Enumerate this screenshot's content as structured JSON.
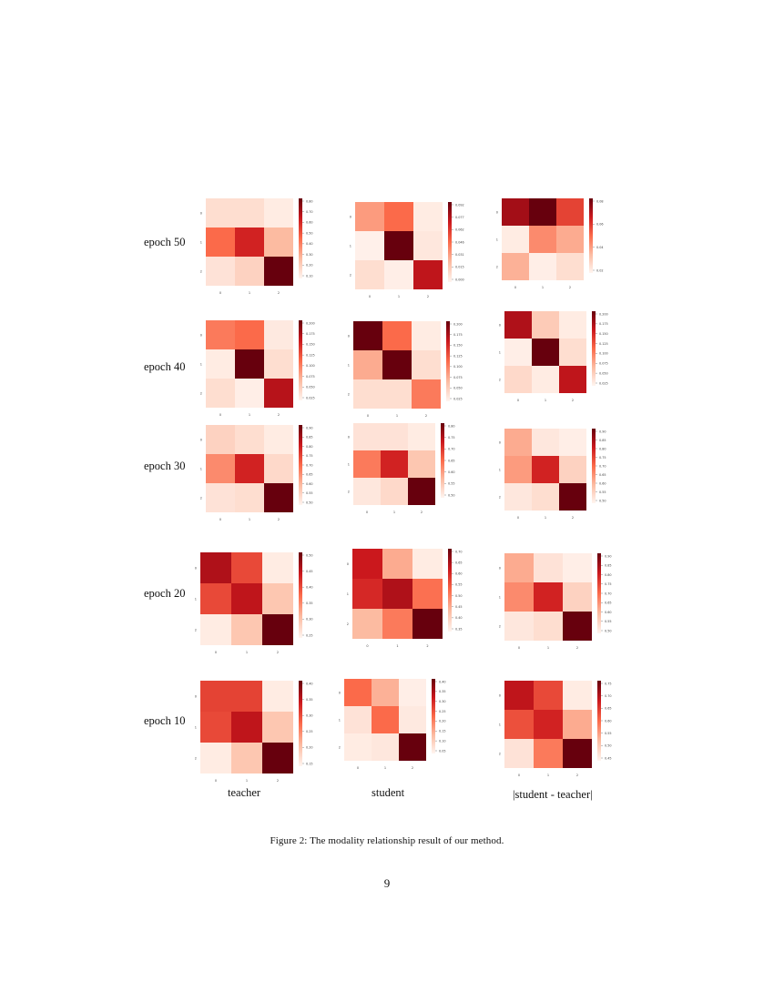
{
  "rows": [
    "epoch 50",
    "epoch 40",
    "epoch 30",
    "epoch 20",
    "epoch 10"
  ],
  "columns": [
    "teacher",
    "student",
    "|student - teacher|"
  ],
  "caption": "Figure 2: The modality relationship result of our method.",
  "page_number": "9",
  "colormap": [
    "#fff5f0",
    "#fcbba1",
    "#fb6a4a",
    "#cb181d",
    "#67000d"
  ],
  "chart_data": [
    {
      "type": "heatmap",
      "row": "epoch 50",
      "column": "teacher",
      "matrix": [
        [
          0.1,
          0.1,
          0.04
        ],
        [
          0.5,
          0.72,
          0.25
        ],
        [
          0.08,
          0.15,
          1.0
        ]
      ],
      "x_ticks": [
        "0",
        "1",
        "2"
      ],
      "y_ticks": [
        "0",
        "1",
        "2"
      ],
      "colorbar_ticks": [
        "0.80",
        "0.70",
        "0.60",
        "0.50",
        "0.40",
        "0.30",
        "0.20",
        "0.10"
      ]
    },
    {
      "type": "heatmap",
      "row": "epoch 50",
      "column": "student",
      "matrix": [
        [
          0.35,
          0.5,
          0.04
        ],
        [
          0.02,
          1.0,
          0.06
        ],
        [
          0.1,
          0.03,
          0.78
        ]
      ],
      "x_ticks": [
        "0",
        "1",
        "2"
      ],
      "y_ticks": [
        "0",
        "1",
        "2"
      ],
      "colorbar_ticks": [
        "0.092",
        "0.077",
        "0.062",
        "0.046",
        "0.031",
        "0.015",
        "0.000"
      ]
    },
    {
      "type": "heatmap",
      "row": "epoch 50",
      "column": "|student - teacher|",
      "matrix": [
        [
          0.85,
          1.0,
          0.62
        ],
        [
          0.04,
          0.4,
          0.3
        ],
        [
          0.28,
          0.03,
          0.1
        ]
      ],
      "x_ticks": [
        "0",
        "1",
        "2"
      ],
      "y_ticks": [
        "0",
        "1",
        "2"
      ],
      "colorbar_ticks": [
        "0.08",
        "0.06",
        "0.04",
        "0.02"
      ]
    },
    {
      "type": "heatmap",
      "row": "epoch 40",
      "column": "teacher",
      "matrix": [
        [
          0.45,
          0.5,
          0.05
        ],
        [
          0.04,
          1.0,
          0.1
        ],
        [
          0.1,
          0.03,
          0.8
        ]
      ],
      "x_ticks": [
        "0",
        "1",
        "2"
      ],
      "y_ticks": [
        "0",
        "1",
        "2"
      ],
      "colorbar_ticks": [
        "0.200",
        "0.175",
        "0.150",
        "0.125",
        "0.100",
        "0.075",
        "0.050",
        "0.025"
      ]
    },
    {
      "type": "heatmap",
      "row": "epoch 40",
      "column": "student",
      "matrix": [
        [
          1.0,
          0.5,
          0.04
        ],
        [
          0.3,
          1.0,
          0.1
        ],
        [
          0.1,
          0.1,
          0.45
        ]
      ],
      "x_ticks": [
        "0",
        "1",
        "2"
      ],
      "y_ticks": [
        "0",
        "1",
        "2"
      ],
      "colorbar_ticks": [
        "0.200",
        "0.175",
        "0.150",
        "0.125",
        "0.100",
        "0.075",
        "0.050",
        "0.025"
      ]
    },
    {
      "type": "heatmap",
      "row": "epoch 40",
      "column": "|student - teacher|",
      "matrix": [
        [
          0.82,
          0.18,
          0.04
        ],
        [
          0.03,
          1.0,
          0.1
        ],
        [
          0.12,
          0.04,
          0.78
        ]
      ],
      "x_ticks": [
        "0",
        "1",
        "2"
      ],
      "y_ticks": [
        "0",
        "1",
        "2"
      ],
      "colorbar_ticks": [
        "0.200",
        "0.175",
        "0.150",
        "0.125",
        "0.100",
        "0.075",
        "0.050",
        "0.025"
      ]
    },
    {
      "type": "heatmap",
      "row": "epoch 30",
      "column": "teacher",
      "matrix": [
        [
          0.15,
          0.1,
          0.04
        ],
        [
          0.4,
          0.72,
          0.12
        ],
        [
          0.08,
          0.1,
          1.0
        ]
      ],
      "x_ticks": [
        "0",
        "1",
        "2"
      ],
      "y_ticks": [
        "0",
        "1",
        "2"
      ],
      "colorbar_ticks": [
        "0.90",
        "0.85",
        "0.80",
        "0.75",
        "0.70",
        "0.65",
        "0.60",
        "0.55",
        "0.50"
      ]
    },
    {
      "type": "heatmap",
      "row": "epoch 30",
      "column": "student",
      "matrix": [
        [
          0.08,
          0.08,
          0.04
        ],
        [
          0.45,
          0.72,
          0.2
        ],
        [
          0.06,
          0.12,
          1.0
        ]
      ],
      "x_ticks": [
        "0",
        "1",
        "2"
      ],
      "y_ticks": [
        "0",
        "1",
        "2"
      ],
      "colorbar_ticks": [
        "0.80",
        "0.75",
        "0.70",
        "0.65",
        "0.60",
        "0.55",
        "0.50"
      ]
    },
    {
      "type": "heatmap",
      "row": "epoch 30",
      "column": "|student - teacher|",
      "matrix": [
        [
          0.3,
          0.06,
          0.03
        ],
        [
          0.35,
          0.72,
          0.15
        ],
        [
          0.06,
          0.1,
          1.0
        ]
      ],
      "x_ticks": [
        "0",
        "1",
        "2"
      ],
      "y_ticks": [
        "0",
        "1",
        "2"
      ],
      "colorbar_ticks": [
        "0.90",
        "0.85",
        "0.80",
        "0.75",
        "0.70",
        "0.65",
        "0.60",
        "0.55",
        "0.50"
      ]
    },
    {
      "type": "heatmap",
      "row": "epoch 20",
      "column": "teacher",
      "matrix": [
        [
          0.82,
          0.6,
          0.04
        ],
        [
          0.6,
          0.78,
          0.2
        ],
        [
          0.04,
          0.2,
          1.0
        ]
      ],
      "x_ticks": [
        "0",
        "1",
        "2"
      ],
      "y_ticks": [
        "0",
        "1",
        "2"
      ],
      "colorbar_ticks": [
        "0.50",
        "0.45",
        "0.40",
        "0.35",
        "0.30",
        "0.25"
      ]
    },
    {
      "type": "heatmap",
      "row": "epoch 20",
      "column": "student",
      "matrix": [
        [
          0.75,
          0.3,
          0.04
        ],
        [
          0.7,
          0.82,
          0.48
        ],
        [
          0.25,
          0.45,
          1.0
        ]
      ],
      "x_ticks": [
        "0",
        "1",
        "2"
      ],
      "y_ticks": [
        "0",
        "1",
        "2"
      ],
      "colorbar_ticks": [
        "0.70",
        "0.65",
        "0.60",
        "0.55",
        "0.50",
        "0.45",
        "0.40",
        "0.35"
      ]
    },
    {
      "type": "heatmap",
      "row": "epoch 20",
      "column": "|student - teacher|",
      "matrix": [
        [
          0.3,
          0.08,
          0.03
        ],
        [
          0.4,
          0.72,
          0.15
        ],
        [
          0.06,
          0.1,
          1.0
        ]
      ],
      "x_ticks": [
        "0",
        "1",
        "2"
      ],
      "y_ticks": [
        "0",
        "1",
        "2"
      ],
      "colorbar_ticks": [
        "0.90",
        "0.85",
        "0.80",
        "0.75",
        "0.70",
        "0.65",
        "0.60",
        "0.55",
        "0.50"
      ]
    },
    {
      "type": "heatmap",
      "row": "epoch 10",
      "column": "teacher",
      "matrix": [
        [
          0.62,
          0.62,
          0.04
        ],
        [
          0.6,
          0.78,
          0.2
        ],
        [
          0.04,
          0.2,
          1.0
        ]
      ],
      "x_ticks": [
        "0",
        "1",
        "2"
      ],
      "y_ticks": [
        "0",
        "1",
        "2"
      ],
      "colorbar_ticks": [
        "0.40",
        "0.35",
        "0.30",
        "0.25",
        "0.20",
        "0.15"
      ]
    },
    {
      "type": "heatmap",
      "row": "epoch 10",
      "column": "student",
      "matrix": [
        [
          0.5,
          0.28,
          0.03
        ],
        [
          0.08,
          0.5,
          0.05
        ],
        [
          0.04,
          0.06,
          1.0
        ]
      ],
      "x_ticks": [
        "0",
        "1",
        "2"
      ],
      "y_ticks": [
        "0",
        "1",
        "2"
      ],
      "colorbar_ticks": [
        "0.40",
        "0.35",
        "0.30",
        "0.25",
        "0.20",
        "0.15",
        "0.10",
        "0.05"
      ]
    },
    {
      "type": "heatmap",
      "row": "epoch 10",
      "column": "|student - teacher|",
      "matrix": [
        [
          0.78,
          0.6,
          0.04
        ],
        [
          0.58,
          0.72,
          0.3
        ],
        [
          0.08,
          0.45,
          1.0
        ]
      ],
      "x_ticks": [
        "0",
        "1",
        "2"
      ],
      "y_ticks": [
        "0",
        "1",
        "2"
      ],
      "colorbar_ticks": [
        "0.75",
        "0.70",
        "0.65",
        "0.60",
        "0.55",
        "0.50",
        "0.45"
      ]
    }
  ]
}
